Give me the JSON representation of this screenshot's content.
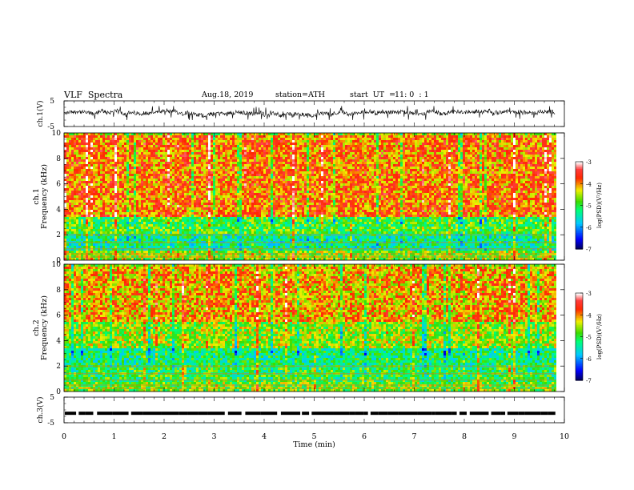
{
  "header": {
    "title": "VLF  Spectra",
    "date": "Aug.18, 2019",
    "station": "station=ATH",
    "start_label": "start  UT  =",
    "start_time": "11: 0  : 1"
  },
  "chart_data": [
    {
      "type": "line",
      "panel": "ch1-waveform",
      "ylabel": "ch.1(V)",
      "ylim": [
        -5,
        5
      ],
      "yticks": [
        "5",
        "-5"
      ],
      "xlim": [
        0,
        10
      ],
      "x_end": 9.82,
      "trace_range": [
        -2.5,
        3.0
      ],
      "trace_color": "#000000"
    },
    {
      "type": "heatmap",
      "panel": "ch1-spectrogram",
      "ylabel": "ch.1\nFrequency  (kHz)",
      "ylim": [
        0,
        10
      ],
      "yticks": [
        "0",
        "2",
        "4",
        "6",
        "8",
        "10"
      ],
      "xlim": [
        0,
        10
      ],
      "x_end": 9.82,
      "colorbar": {
        "label": "log(PSD)(V²/Hz)",
        "range": [
          -7,
          -3
        ],
        "ticks": [
          "-3",
          "-4",
          "-5",
          "-6",
          "-7"
        ]
      },
      "bands": [
        {
          "f": [
            3.5,
            10
          ],
          "level": -3.9
        },
        {
          "f": [
            2.2,
            3.5
          ],
          "level": -4.9
        },
        {
          "f": [
            0.8,
            2.2
          ],
          "level": -5.3
        },
        {
          "f": [
            0,
            0.8
          ],
          "level": -4.6
        }
      ]
    },
    {
      "type": "heatmap",
      "panel": "ch2-spectrogram",
      "ylabel": "ch.2\nFrequency  (kHz)",
      "ylim": [
        0,
        10
      ],
      "yticks": [
        "0",
        "2",
        "4",
        "6",
        "8",
        "10"
      ],
      "xlim": [
        0,
        10
      ],
      "x_end": 9.82,
      "colorbar": {
        "label": "log(PSD)(V²/Hz)",
        "range": [
          -7,
          -3
        ],
        "ticks": [
          "-3",
          "-4",
          "-5",
          "-6",
          "-7"
        ]
      },
      "bands": [
        {
          "f": [
            5.5,
            10
          ],
          "level": -4.1
        },
        {
          "f": [
            3.5,
            5.5
          ],
          "level": -4.6
        },
        {
          "f": [
            2.0,
            3.5
          ],
          "level": -5.2
        },
        {
          "f": [
            0.9,
            2.0
          ],
          "level": -5.0
        },
        {
          "f": [
            0,
            0.9
          ],
          "level": -4.7
        }
      ]
    },
    {
      "type": "line",
      "panel": "ch3-signal",
      "ylabel": "ch.3(V)",
      "ylim": [
        -5,
        5
      ],
      "yticks": [
        "5",
        "-5"
      ],
      "xlim": [
        0,
        10
      ],
      "x_end": 9.82,
      "level": -1.3,
      "trace_color": "#000000"
    }
  ],
  "xaxis": {
    "label": "Time  (min)",
    "ticks": [
      "0",
      "1",
      "2",
      "3",
      "4",
      "5",
      "6",
      "7",
      "8",
      "9",
      "10"
    ]
  }
}
